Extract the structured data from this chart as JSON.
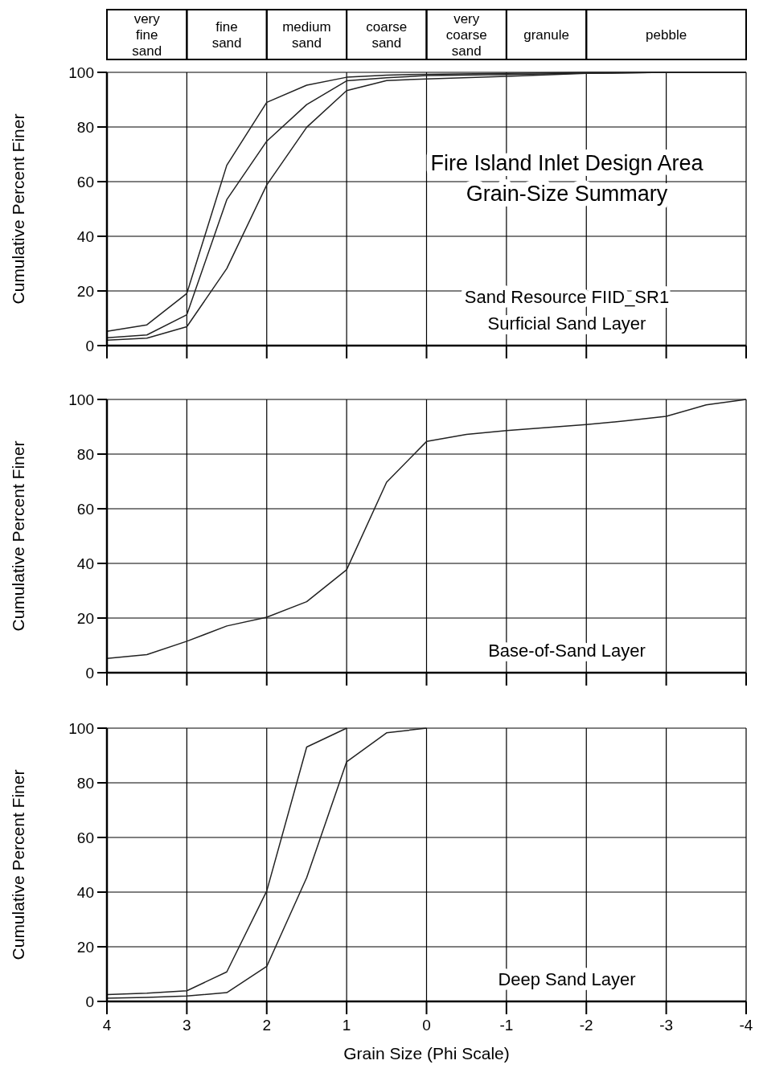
{
  "chart_data": [
    {
      "type": "line",
      "title": "Fire Island Inlet Design Area\nGrain-Size Summary",
      "subtitle": "Sand Resource FIID_SR1\nSurficial Sand Layer",
      "ylabel": "Cumulative Percent Finer",
      "x": [
        4,
        3.5,
        3,
        2.5,
        2,
        1.5,
        1,
        0.5,
        0,
        -1,
        -2,
        -3,
        -4
      ],
      "xlim": [
        4,
        -4
      ],
      "xticks": [
        4,
        3,
        2,
        1,
        0,
        -1,
        -2,
        -3,
        -4
      ],
      "ylim": [
        0,
        100
      ],
      "yticks": [
        0,
        20,
        40,
        60,
        80,
        100
      ],
      "grid": true,
      "tick_labels": "y",
      "annotations": [
        "very fine sand",
        "fine sand",
        "medium sand",
        "coarse sand",
        "very coarse sand",
        "granule",
        "pebble"
      ],
      "series": [
        {
          "color": "#222222",
          "values": [
            5.2,
            7.6,
            19.1,
            66,
            89,
            95.3,
            98.2,
            99,
            99.3,
            99.6,
            100,
            100,
            100
          ]
        },
        {
          "color": "#222222",
          "values": [
            2.9,
            3.9,
            11.3,
            53.4,
            74.8,
            88.2,
            96.9,
            98,
            98.8,
            99.2,
            99.7,
            100,
            100
          ]
        },
        {
          "color": "#222222",
          "values": [
            2,
            2.7,
            6.9,
            28.2,
            58.8,
            79.9,
            93.3,
            97,
            97.6,
            98.5,
            99.6,
            100,
            100
          ]
        }
      ]
    },
    {
      "type": "line",
      "subtitle": "Base-of-Sand Layer",
      "ylabel": "Cumulative Percent Finer",
      "xlim": [
        4,
        -4
      ],
      "xticks": [
        4,
        3,
        2,
        1,
        0,
        -1,
        -2,
        -3,
        -4
      ],
      "ylim": [
        0,
        100
      ],
      "yticks": [
        0,
        20,
        40,
        60,
        80,
        100
      ],
      "grid": true,
      "tick_labels": "y",
      "series": [
        {
          "color": "#222222",
          "x": [
            4,
            3.5,
            3,
            2.5,
            2,
            1.5,
            1,
            0.5,
            0,
            -0.5,
            -1,
            -1.5,
            -2,
            -2.5,
            -3,
            -3.5,
            -4
          ],
          "values": [
            5.2,
            6.6,
            11.5,
            17.1,
            20.3,
            26,
            37.7,
            69.7,
            84.6,
            87.2,
            88.6,
            89.7,
            90.8,
            92.2,
            93.8,
            98,
            100
          ]
        }
      ]
    },
    {
      "type": "line",
      "subtitle": "Deep Sand Layer",
      "ylabel": "Cumulative Percent Finer",
      "xlabel": "Grain Size (Phi Scale)",
      "xlim": [
        4,
        -4
      ],
      "xticks": [
        4,
        3,
        2,
        1,
        0,
        -1,
        -2,
        -3,
        -4
      ],
      "ylim": [
        0,
        100
      ],
      "yticks": [
        0,
        20,
        40,
        60,
        80,
        100
      ],
      "grid": true,
      "series": [
        {
          "color": "#222222",
          "x": [
            4,
            3.5,
            3,
            2.5,
            2,
            1.5,
            1
          ],
          "values": [
            2.5,
            3,
            3.9,
            10.8,
            40.4,
            93.1,
            100
          ]
        },
        {
          "color": "#222222",
          "x": [
            4,
            3.5,
            3,
            2.5,
            2,
            1.5,
            1,
            0.5,
            0
          ],
          "values": [
            1.2,
            1.5,
            2,
            3.2,
            12.8,
            45.3,
            87.7,
            98.3,
            100
          ]
        }
      ]
    }
  ]
}
